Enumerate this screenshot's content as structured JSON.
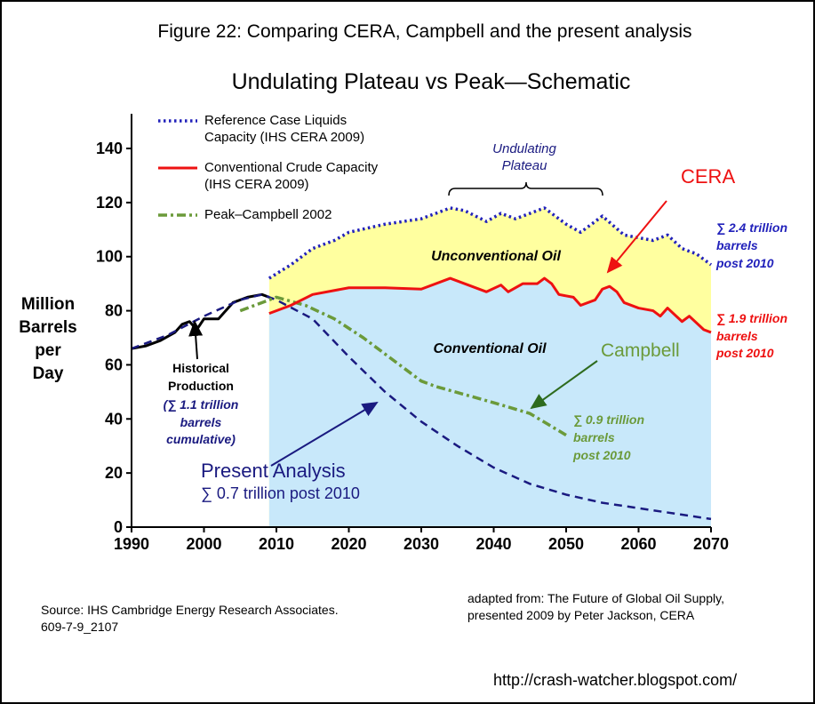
{
  "chart_data": {
    "type": "line",
    "figure_title": "Figure 22: Comparing CERA, Campbell and the present analysis",
    "title": "Undulating Plateau vs Peak—Schematic",
    "y_label": [
      "Million",
      "Barrels",
      "per",
      "Day"
    ],
    "xlim": [
      1990,
      2070
    ],
    "xticks": [
      1990,
      2000,
      2010,
      2020,
      2030,
      2040,
      2050,
      2060,
      2070
    ],
    "ylim": [
      0,
      150
    ],
    "yticks": [
      0,
      20,
      40,
      60,
      80,
      100,
      120,
      140
    ],
    "series": [
      {
        "name": "Reference Case Liquids Capacity (IHS CERA 2009)",
        "color": "#2222bb",
        "style": "dotted",
        "fill": "#ffff9f",
        "legend": true,
        "x": [
          2009,
          2012,
          2015,
          2018,
          2020,
          2025,
          2030,
          2034,
          2036,
          2039,
          2041,
          2043,
          2045,
          2047,
          2050,
          2052,
          2055,
          2058,
          2062,
          2064,
          2066,
          2068,
          2070
        ],
        "values": [
          92,
          97,
          103,
          106,
          109,
          112,
          114,
          118,
          117,
          113,
          116,
          114,
          116,
          118,
          112,
          109,
          115,
          108,
          106,
          108,
          103,
          101,
          97
        ]
      },
      {
        "name": "Conventional Crude Capacity (IHS CERA 2009)",
        "color": "#ee1111",
        "style": "solid",
        "fill": "#c8e8fa",
        "legend": true,
        "x": [
          2009,
          2012,
          2015,
          2020,
          2025,
          2030,
          2034,
          2036,
          2039,
          2041,
          2042,
          2044,
          2046,
          2047,
          2048,
          2049,
          2051,
          2052,
          2054,
          2055,
          2056,
          2057,
          2058,
          2060,
          2062,
          2063,
          2064,
          2066,
          2067,
          2069,
          2070
        ],
        "values": [
          79,
          82,
          86,
          88.5,
          88.5,
          88,
          92,
          90,
          87,
          89.5,
          87,
          90,
          90,
          92,
          90,
          86,
          85,
          82,
          84,
          88,
          89,
          87,
          83,
          81,
          80,
          78,
          81,
          76,
          78,
          73,
          72
        ]
      },
      {
        "name": "Peak–Campbell 2002",
        "color": "#6b9a3a",
        "style": "dashdot",
        "legend": true,
        "x": [
          2005,
          2008,
          2010,
          2014,
          2018,
          2022,
          2026,
          2030,
          2032,
          2036,
          2040,
          2045,
          2050
        ],
        "values": [
          80,
          83,
          85,
          82,
          77,
          70,
          62,
          54,
          52,
          49,
          46,
          42,
          34
        ]
      },
      {
        "name": "Present Analysis",
        "color": "#1a1a80",
        "style": "dashed",
        "legend": false,
        "x": [
          1990,
          1995,
          2000,
          2005,
          2008,
          2010,
          2015,
          2020,
          2025,
          2030,
          2035,
          2040,
          2045,
          2050,
          2055,
          2060,
          2065,
          2070
        ],
        "values": [
          66,
          71,
          78,
          84,
          86,
          84,
          77,
          63,
          50,
          39,
          30,
          22,
          16,
          12,
          9,
          7,
          5,
          3
        ]
      },
      {
        "name": "Historical Production",
        "color": "#000000",
        "style": "solid",
        "legend": false,
        "x": [
          1990,
          1992,
          1994,
          1996,
          1997,
          1998,
          1999,
          2000,
          2002,
          2003,
          2004,
          2006,
          2008,
          2009
        ],
        "values": [
          66,
          67,
          69,
          72,
          75,
          76,
          73,
          77,
          77,
          80,
          83,
          85,
          86,
          85
        ]
      }
    ],
    "annotations": [
      {
        "lines": [
          "Undulating",
          "Plateau"
        ]
      },
      {
        "lines": [
          "Unconventional Oil"
        ]
      },
      {
        "lines": [
          "Conventional Oil"
        ]
      },
      {
        "lines": [
          "CERA"
        ]
      },
      {
        "lines": [
          "Campbell"
        ]
      },
      {
        "lines": [
          "Present Analysis",
          "∑ 0.7 trillion post 2010"
        ]
      },
      {
        "lines": [
          "Historical",
          "Production"
        ]
      },
      {
        "lines": [
          "(∑ 1.1 trillion",
          "barrels",
          "cumulative)"
        ]
      },
      {
        "lines": [
          "∑ 2.4 trillion",
          "barrels",
          "post 2010"
        ]
      },
      {
        "lines": [
          "∑ 1.9 trillion",
          "barrels",
          "post 2010"
        ]
      },
      {
        "lines": [
          "∑ 0.9 trillion",
          "barrels",
          "post 2010"
        ]
      }
    ],
    "source": [
      "Source: IHS Cambridge Energy Research Associates.",
      "609-7-9_2107"
    ],
    "adapted": [
      "adapted from: The Future of Global Oil Supply,",
      "presented 2009 by Peter Jackson, CERA"
    ],
    "url": "http://crash-watcher.blogspot.com/"
  }
}
